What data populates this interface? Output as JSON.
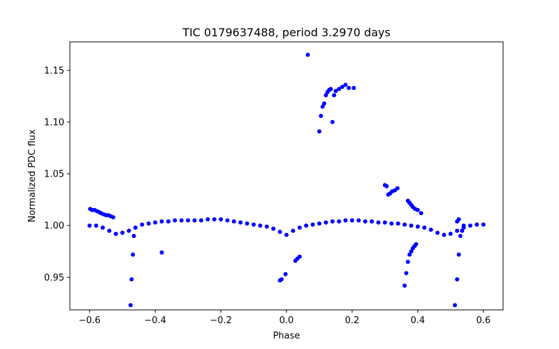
{
  "chart_data": {
    "type": "scatter",
    "title": "TIC 0179637488, period 3.2970 days",
    "xlabel": "Phase",
    "ylabel": "Normalized PDC flux",
    "xlim": [
      -0.66,
      0.66
    ],
    "ylim": [
      0.9185,
      1.1775
    ],
    "xticks": [
      -0.6,
      -0.4,
      -0.2,
      0.0,
      0.2,
      0.4,
      0.6
    ],
    "xtick_labels": [
      "−0.6",
      "−0.4",
      "−0.2",
      "0.0",
      "0.2",
      "0.4",
      "0.6"
    ],
    "yticks": [
      0.95,
      1.0,
      1.05,
      1.1,
      1.15
    ],
    "ytick_labels": [
      "0.95",
      "1.00",
      "1.05",
      "1.10",
      "1.15"
    ],
    "grid": false,
    "legend": "none",
    "marker_color": "#0000ff",
    "series": [
      {
        "x": [
          -0.6,
          -0.58,
          -0.56,
          -0.54,
          -0.52,
          -0.5,
          -0.48,
          -0.46,
          -0.44,
          -0.42,
          -0.4,
          -0.38,
          -0.36,
          -0.34,
          -0.32,
          -0.3,
          -0.28,
          -0.26,
          -0.24,
          -0.22,
          -0.2,
          -0.18,
          -0.16,
          -0.14,
          -0.12,
          -0.1,
          -0.08,
          -0.06,
          -0.04,
          -0.02,
          0.0,
          0.02,
          0.04,
          0.06,
          0.08,
          0.1,
          0.12,
          0.14,
          0.16,
          0.18,
          0.2,
          0.22,
          0.24,
          0.26,
          0.28,
          0.3,
          0.32,
          0.34,
          0.36,
          0.38,
          0.4,
          0.42,
          0.44,
          0.46,
          0.48,
          0.5,
          0.52,
          0.54,
          0.56,
          0.58,
          0.6,
          -0.598,
          -0.592,
          -0.585,
          -0.578,
          -0.571,
          -0.565,
          -0.558,
          -0.55,
          -0.543,
          -0.536,
          -0.528,
          -0.475,
          -0.472,
          -0.468,
          -0.465,
          -0.38,
          0.065,
          0.1,
          0.105,
          0.11,
          0.115,
          0.12,
          0.125,
          0.13,
          0.135,
          0.14,
          0.145,
          0.15,
          0.16,
          0.17,
          0.18,
          0.19,
          0.205,
          0.3,
          0.305,
          0.31,
          0.315,
          0.322,
          0.33,
          0.338,
          0.37,
          0.375,
          0.38,
          0.385,
          0.392,
          0.4,
          0.41,
          0.36,
          0.365,
          0.37,
          0.375,
          0.38,
          0.385,
          0.39,
          0.395,
          -0.02,
          -0.015,
          -0.003,
          0.027,
          0.033,
          0.04,
          0.513,
          0.52,
          0.525,
          0.53,
          0.535,
          0.54,
          0.525,
          0.52
        ],
        "y": [
          1.0,
          1.0,
          0.998,
          0.995,
          0.992,
          0.993,
          0.995,
          0.998,
          1.001,
          1.002,
          1.003,
          1.004,
          1.004,
          1.005,
          1.005,
          1.005,
          1.005,
          1.005,
          1.006,
          1.006,
          1.006,
          1.005,
          1.004,
          1.003,
          1.002,
          1.001,
          1.0,
          0.999,
          0.997,
          0.994,
          0.991,
          0.995,
          0.998,
          1.0,
          1.001,
          1.002,
          1.003,
          1.004,
          1.004,
          1.005,
          1.005,
          1.005,
          1.004,
          1.004,
          1.003,
          1.003,
          1.002,
          1.002,
          1.001,
          1.0,
          0.999,
          0.998,
          0.996,
          0.993,
          0.991,
          0.992,
          0.995,
          0.998,
          1.0,
          1.001,
          1.001,
          1.016,
          1.015,
          1.015,
          1.014,
          1.013,
          1.012,
          1.011,
          1.01,
          1.01,
          1.009,
          1.008,
          0.923,
          0.948,
          0.972,
          0.99,
          0.974,
          1.165,
          1.091,
          1.106,
          1.115,
          1.118,
          1.126,
          1.129,
          1.131,
          1.132,
          1.1,
          1.126,
          1.13,
          1.132,
          1.134,
          1.136,
          1.133,
          1.133,
          1.039,
          1.038,
          1.03,
          1.031,
          1.033,
          1.034,
          1.036,
          1.024,
          1.022,
          1.02,
          1.018,
          1.016,
          1.015,
          1.012,
          0.942,
          0.954,
          0.965,
          0.972,
          0.975,
          0.978,
          0.98,
          0.982,
          0.947,
          0.948,
          0.953,
          0.966,
          0.968,
          0.97,
          0.923,
          0.948,
          0.972,
          0.99,
          0.995,
          1.0,
          1.006,
          1.004
        ]
      }
    ]
  }
}
